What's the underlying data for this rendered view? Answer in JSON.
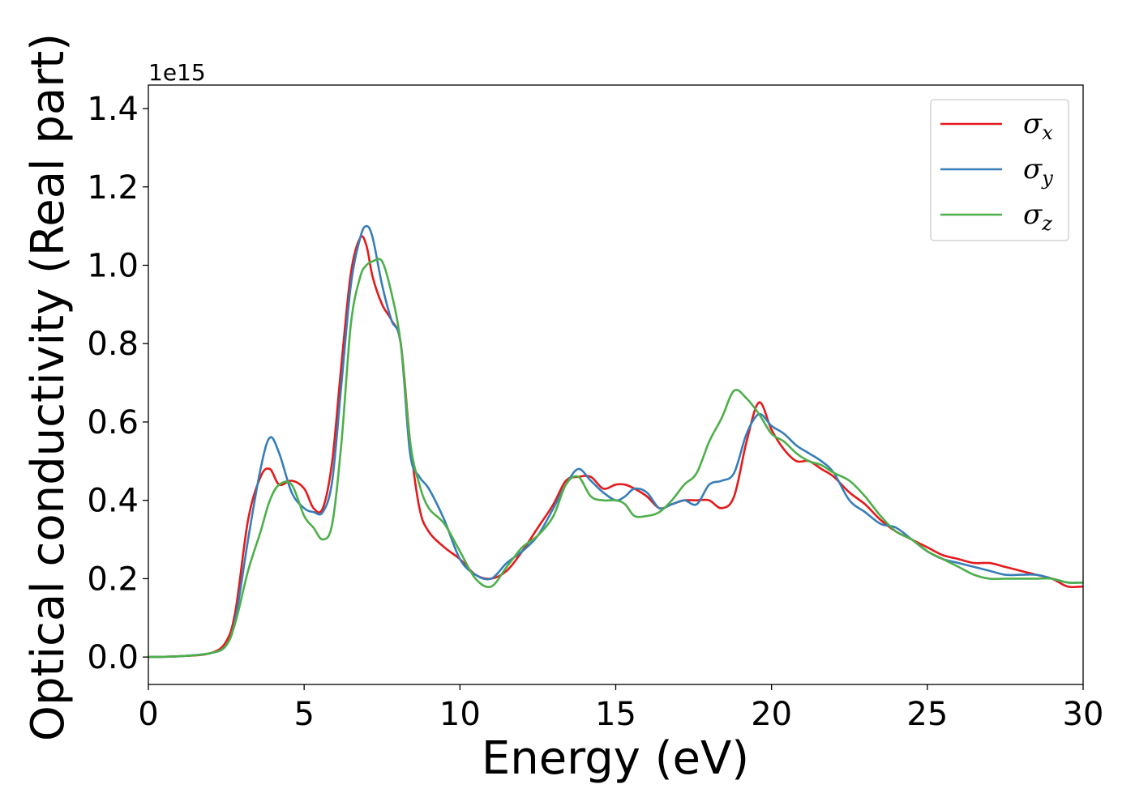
{
  "chart_data": {
    "type": "line",
    "title": "",
    "xlabel": "Energy (eV)",
    "ylabel": "Optical conductivity (Real part)",
    "y_offset_label": "1e15",
    "xlim": [
      0,
      30
    ],
    "ylim": [
      -0.07,
      1.46
    ],
    "xticks": [
      0,
      5,
      10,
      15,
      20,
      25,
      30
    ],
    "xtick_labels": [
      "0",
      "5",
      "10",
      "15",
      "20",
      "25",
      "30"
    ],
    "yticks": [
      0.0,
      0.2,
      0.4,
      0.6,
      0.8,
      1.0,
      1.2,
      1.4
    ],
    "ytick_labels": [
      "0.0",
      "0.2",
      "0.4",
      "0.6",
      "0.8",
      "1.0",
      "1.2",
      "1.4"
    ],
    "grid": false,
    "legend_position": "top-right",
    "series": [
      {
        "name": "σx",
        "label_main": "σ",
        "label_sub": "x",
        "color": "#e41a1c",
        "x": [
          0,
          1,
          2,
          2.5,
          2.8,
          3.2,
          3.6,
          3.9,
          4.2,
          4.6,
          5.0,
          5.3,
          5.6,
          5.9,
          6.2,
          6.5,
          6.8,
          7.0,
          7.2,
          7.5,
          7.8,
          8.1,
          8.4,
          8.7,
          9.0,
          9.5,
          10.0,
          10.5,
          11.0,
          11.5,
          12.0,
          12.5,
          13.0,
          13.4,
          13.8,
          14.2,
          14.6,
          15.0,
          15.3,
          15.6,
          16.0,
          16.4,
          16.8,
          17.2,
          17.6,
          18.0,
          18.4,
          18.8,
          19.2,
          19.6,
          20.0,
          20.4,
          20.8,
          21.2,
          21.6,
          22.0,
          22.5,
          23.0,
          23.5,
          24.0,
          24.5,
          25.0,
          25.5,
          26.0,
          26.5,
          27.0,
          27.5,
          28.0,
          28.5,
          29.0,
          29.5,
          30.0
        ],
        "y": [
          0,
          0.002,
          0.01,
          0.04,
          0.12,
          0.35,
          0.46,
          0.48,
          0.44,
          0.45,
          0.43,
          0.38,
          0.38,
          0.5,
          0.75,
          0.98,
          1.07,
          1.05,
          0.97,
          0.9,
          0.86,
          0.8,
          0.55,
          0.38,
          0.32,
          0.28,
          0.25,
          0.21,
          0.2,
          0.22,
          0.27,
          0.33,
          0.39,
          0.45,
          0.46,
          0.46,
          0.43,
          0.44,
          0.44,
          0.43,
          0.41,
          0.38,
          0.39,
          0.4,
          0.4,
          0.4,
          0.38,
          0.41,
          0.55,
          0.65,
          0.58,
          0.53,
          0.5,
          0.5,
          0.48,
          0.46,
          0.42,
          0.39,
          0.35,
          0.32,
          0.3,
          0.28,
          0.26,
          0.25,
          0.24,
          0.24,
          0.23,
          0.22,
          0.21,
          0.2,
          0.18,
          0.18
        ]
      },
      {
        "name": "σy",
        "label_main": "σ",
        "label_sub": "y",
        "color": "#377eb8",
        "x": [
          0,
          1,
          2,
          2.5,
          2.8,
          3.2,
          3.6,
          3.9,
          4.2,
          4.6,
          5.0,
          5.3,
          5.6,
          5.9,
          6.2,
          6.5,
          6.8,
          7.0,
          7.2,
          7.5,
          7.8,
          8.1,
          8.4,
          8.7,
          9.0,
          9.5,
          10.0,
          10.5,
          11.0,
          11.5,
          12.0,
          12.5,
          13.0,
          13.4,
          13.8,
          14.2,
          14.6,
          15.0,
          15.3,
          15.6,
          16.0,
          16.4,
          16.8,
          17.2,
          17.6,
          18.0,
          18.4,
          18.8,
          19.2,
          19.6,
          20.0,
          20.4,
          20.8,
          21.2,
          21.6,
          22.0,
          22.5,
          23.0,
          23.5,
          24.0,
          24.5,
          25.0,
          25.5,
          26.0,
          26.5,
          27.0,
          27.5,
          28.0,
          28.5,
          29.0,
          29.5,
          30.0
        ],
        "y": [
          0,
          0.002,
          0.01,
          0.03,
          0.1,
          0.3,
          0.48,
          0.56,
          0.52,
          0.42,
          0.38,
          0.37,
          0.37,
          0.45,
          0.7,
          0.95,
          1.07,
          1.1,
          1.07,
          0.95,
          0.86,
          0.8,
          0.52,
          0.46,
          0.43,
          0.35,
          0.25,
          0.21,
          0.2,
          0.24,
          0.27,
          0.31,
          0.38,
          0.44,
          0.48,
          0.45,
          0.42,
          0.4,
          0.41,
          0.43,
          0.42,
          0.38,
          0.39,
          0.4,
          0.39,
          0.44,
          0.45,
          0.47,
          0.57,
          0.62,
          0.59,
          0.57,
          0.54,
          0.52,
          0.5,
          0.47,
          0.4,
          0.37,
          0.34,
          0.33,
          0.3,
          0.27,
          0.25,
          0.24,
          0.23,
          0.22,
          0.21,
          0.21,
          0.21,
          0.2,
          0.19,
          0.19
        ]
      },
      {
        "name": "σz",
        "label_main": "σ",
        "label_sub": "z",
        "color": "#4daf4a",
        "x": [
          0,
          1,
          2,
          2.5,
          2.8,
          3.2,
          3.6,
          3.9,
          4.2,
          4.6,
          5.0,
          5.3,
          5.6,
          5.9,
          6.2,
          6.5,
          6.8,
          7.0,
          7.2,
          7.5,
          7.8,
          8.1,
          8.4,
          8.7,
          9.0,
          9.5,
          10.0,
          10.5,
          11.0,
          11.5,
          12.0,
          12.5,
          13.0,
          13.4,
          13.8,
          14.2,
          14.6,
          15.0,
          15.3,
          15.6,
          16.0,
          16.4,
          16.8,
          17.2,
          17.6,
          18.0,
          18.4,
          18.8,
          19.2,
          19.6,
          20.0,
          20.4,
          20.8,
          21.2,
          21.6,
          22.0,
          22.5,
          23.0,
          23.5,
          24.0,
          24.5,
          25.0,
          25.5,
          26.0,
          26.5,
          27.0,
          27.5,
          28.0,
          28.5,
          29.0,
          29.5,
          30.0
        ],
        "y": [
          0,
          0.002,
          0.01,
          0.03,
          0.09,
          0.22,
          0.32,
          0.4,
          0.44,
          0.44,
          0.36,
          0.33,
          0.3,
          0.34,
          0.55,
          0.85,
          0.97,
          1.0,
          1.01,
          1.01,
          0.93,
          0.8,
          0.55,
          0.44,
          0.38,
          0.34,
          0.27,
          0.2,
          0.18,
          0.23,
          0.28,
          0.31,
          0.36,
          0.44,
          0.46,
          0.41,
          0.4,
          0.4,
          0.39,
          0.36,
          0.36,
          0.37,
          0.4,
          0.44,
          0.47,
          0.55,
          0.61,
          0.68,
          0.66,
          0.62,
          0.57,
          0.55,
          0.52,
          0.5,
          0.49,
          0.47,
          0.45,
          0.41,
          0.36,
          0.32,
          0.3,
          0.27,
          0.25,
          0.23,
          0.21,
          0.2,
          0.2,
          0.2,
          0.2,
          0.2,
          0.19,
          0.19
        ]
      }
    ]
  }
}
